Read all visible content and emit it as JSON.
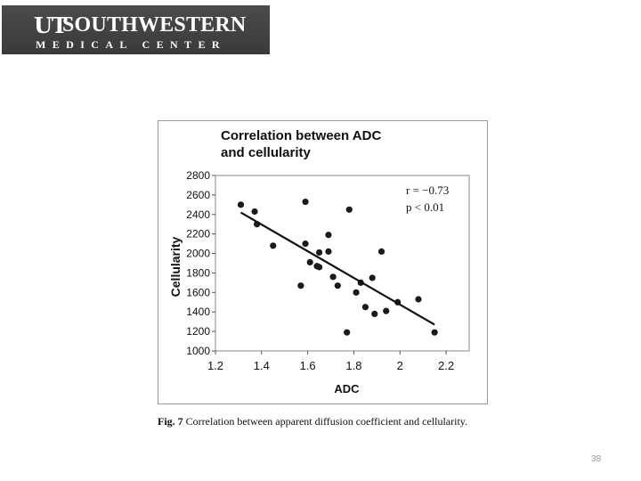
{
  "logo": {
    "mark": "UT",
    "line1": "SOUTHWESTERN",
    "line2": "MEDICAL CENTER"
  },
  "caption": {
    "label": "Fig. 7",
    "text": "Correlation between apparent diffusion coefficient and cellularity."
  },
  "page_number": "38",
  "chart_data": {
    "type": "scatter",
    "title": "Correlation between ADC\nand cellularity",
    "xlabel": "ADC",
    "ylabel": "Cellularity",
    "xlim": [
      1.2,
      2.3
    ],
    "ylim": [
      1000,
      2800
    ],
    "x_ticks": [
      1.2,
      1.4,
      1.6,
      1.8,
      2,
      2.2
    ],
    "x_tick_labels": [
      "1.2",
      "1.4",
      "1.6",
      "1.8",
      "2",
      "2.2"
    ],
    "y_ticks": [
      1000,
      1200,
      1400,
      1600,
      1800,
      2000,
      2200,
      2400,
      2600,
      2800
    ],
    "y_tick_labels": [
      "1000",
      "1200",
      "1400",
      "1600",
      "1800",
      "2000",
      "2200",
      "2400",
      "2600",
      "2800"
    ],
    "points": [
      {
        "x": 1.31,
        "y": 2500
      },
      {
        "x": 1.37,
        "y": 2430
      },
      {
        "x": 1.38,
        "y": 2300
      },
      {
        "x": 1.45,
        "y": 2080
      },
      {
        "x": 1.57,
        "y": 1670
      },
      {
        "x": 1.59,
        "y": 2530
      },
      {
        "x": 1.59,
        "y": 2100
      },
      {
        "x": 1.61,
        "y": 1910
      },
      {
        "x": 1.64,
        "y": 1870
      },
      {
        "x": 1.65,
        "y": 1860
      },
      {
        "x": 1.65,
        "y": 2010
      },
      {
        "x": 1.69,
        "y": 2190
      },
      {
        "x": 1.69,
        "y": 2020
      },
      {
        "x": 1.71,
        "y": 1760
      },
      {
        "x": 1.73,
        "y": 1670
      },
      {
        "x": 1.77,
        "y": 1190
      },
      {
        "x": 1.78,
        "y": 2450
      },
      {
        "x": 1.81,
        "y": 1600
      },
      {
        "x": 1.83,
        "y": 1700
      },
      {
        "x": 1.85,
        "y": 1450
      },
      {
        "x": 1.88,
        "y": 1750
      },
      {
        "x": 1.89,
        "y": 1380
      },
      {
        "x": 1.92,
        "y": 2020
      },
      {
        "x": 1.94,
        "y": 1410
      },
      {
        "x": 1.99,
        "y": 1500
      },
      {
        "x": 2.08,
        "y": 1530
      },
      {
        "x": 2.15,
        "y": 1190
      }
    ],
    "fit_line": {
      "x": [
        1.31,
        2.15
      ],
      "y": [
        2420,
        1270
      ]
    },
    "annotations": [
      "r = −0.73",
      "p < 0.01"
    ],
    "grid": false,
    "point_color": "#1a1a1a"
  }
}
